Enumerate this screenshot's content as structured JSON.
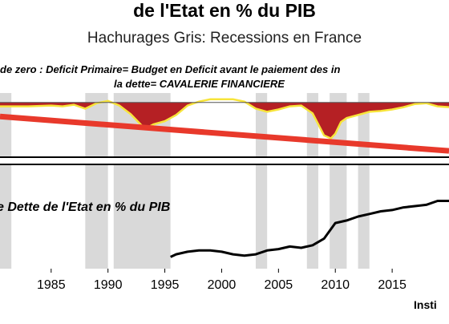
{
  "header": {
    "title": "de l'Etat en % du PIB",
    "subtitle": "Hachurages Gris: Recessions en France",
    "note_line1": "de zero : Deficit Primaire= Budget en Deficit avant le paiement des in",
    "note_line2": "la dette= CAVALERIE FINANCIERE",
    "credit": "Insti"
  },
  "chart_data": [
    {
      "type": "area",
      "panel": "top",
      "xlim": [
        1980.5,
        2020
      ],
      "baseline": 0,
      "x": [
        1980.5,
        1983,
        1985,
        1986,
        1987,
        1988,
        1989,
        1990,
        1991,
        1992,
        1993,
        1993.5,
        1994,
        1995,
        1996,
        1997,
        1998,
        1999,
        2000,
        2001,
        2002,
        2003,
        2004,
        2005,
        2006,
        2007,
        2008,
        2009,
        2009.6,
        2010,
        2010.5,
        2011,
        2012,
        2013,
        2014,
        2015,
        2016,
        2017,
        2018,
        2019,
        2020
      ],
      "balance": [
        -0.5,
        -0.5,
        -0.4,
        -0.5,
        -0.3,
        -0.8,
        -0.1,
        0.2,
        -0.4,
        -1.5,
        -3.0,
        -3.2,
        -2.8,
        -2.4,
        -1.6,
        -0.4,
        0.1,
        0.4,
        0.4,
        0.4,
        0.1,
        -0.8,
        -1.2,
        -0.9,
        -0.5,
        -0.4,
        -1.4,
        -4.2,
        -4.6,
        -4.0,
        -2.5,
        -2.0,
        -1.6,
        -1.2,
        -1.1,
        -0.9,
        -0.6,
        -0.2,
        -0.1,
        -0.5,
        -0.6
      ],
      "trend_x": [
        1980.5,
        2020
      ],
      "trend_y": [
        -1.8,
        -6.2
      ],
      "colors": {
        "fill": "#b52024",
        "line": "#f7e43a",
        "trend": "#e8392b",
        "recession": "#d9d9d9"
      }
    },
    {
      "type": "line",
      "panel": "bottom",
      "title": "e Dette de l'Etat en % du PIB",
      "xlim": [
        1980.5,
        2020
      ],
      "ylim": [
        30,
        110
      ],
      "x": [
        1995.5,
        1996,
        1997,
        1998,
        1999,
        2000,
        2001,
        2002,
        2003,
        2004,
        2005,
        2006,
        2007,
        2008,
        2009,
        2010,
        2011,
        2012,
        2013,
        2014,
        2015,
        2016,
        2017,
        2018,
        2019,
        2020
      ],
      "y": [
        39,
        41,
        43,
        44,
        44,
        43,
        41,
        40,
        41,
        44,
        45,
        47,
        46,
        48,
        53,
        65,
        67,
        70,
        72,
        74,
        75,
        77,
        78,
        79,
        82,
        82
      ],
      "colors": {
        "line": "#000000",
        "recession": "#d9d9d9"
      }
    }
  ],
  "recessions": [
    [
      1980.5,
      1981.5
    ],
    [
      1988,
      1990
    ],
    [
      1990.5,
      1995.5
    ],
    [
      2003,
      2004
    ],
    [
      2007.5,
      2008.5
    ],
    [
      2009.5,
      2011
    ],
    [
      2012,
      2013
    ]
  ],
  "x_ticks": [
    1985,
    1990,
    1995,
    2000,
    2005,
    2010,
    2015
  ]
}
